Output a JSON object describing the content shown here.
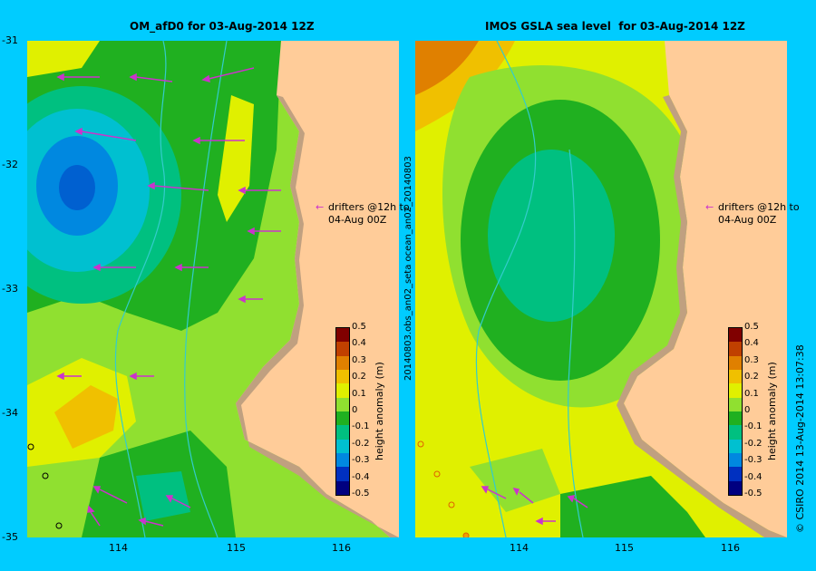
{
  "left_panel": {
    "title": "OM_afD0 for 03-Aug-2014 12Z",
    "drifter_note_line1": "drifters @12h to",
    "drifter_note_line2": "04-Aug 00Z",
    "colorbar_label": "height anomaly (m)"
  },
  "right_panel": {
    "title": "IMOS GSLA sea level  for 03-Aug-2014 12Z",
    "drifter_note_line1": "drifters @12h to",
    "drifter_note_line2": "04-Aug 00Z",
    "colorbar_label": "height anomaly (m)",
    "side_label": "20140803.obs_an02_seta        ocean_an02_20140803"
  },
  "axes": {
    "y_ticks": [
      "-31",
      "-32",
      "-33",
      "-34",
      "-35"
    ],
    "x_ticks": [
      "114",
      "115",
      "116"
    ]
  },
  "colorbar": {
    "ticks": [
      "0.5",
      "0.4",
      "0.3",
      "0.2",
      "0.1",
      "0",
      "-0.1",
      "-0.2",
      "-0.3",
      "-0.4",
      "-0.5"
    ],
    "colors": [
      "#000080",
      "#0030c0",
      "#0088e0",
      "#00c0d0",
      "#00c080",
      "#20b020",
      "#90e030",
      "#e0f000",
      "#f0c000",
      "#e08000",
      "#c04000",
      "#800000"
    ]
  },
  "credit": "© CSIRO 2014    13-Aug-2014 13:07:38",
  "colors": {
    "land": "#ffcc99",
    "shelf": "#c0a080",
    "background": "#00ccff",
    "vector": "#cc33cc",
    "contour_line": "#33cccc"
  }
}
